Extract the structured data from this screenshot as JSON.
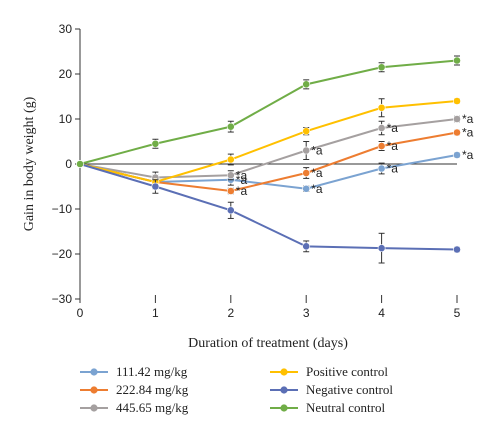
{
  "chart_data": {
    "type": "line",
    "xlabel": "Duration of treatment (days)",
    "ylabel": "Gain in body weight (g)",
    "xlim": [
      0,
      5
    ],
    "ylim": [
      -30,
      30
    ],
    "x_ticks": [
      0,
      1,
      2,
      3,
      4,
      5
    ],
    "y_ticks": [
      -30,
      -20,
      -10,
      0,
      10,
      20,
      30
    ],
    "x_tick_labels": [
      "0",
      "1",
      "2",
      "3",
      "4",
      "5"
    ],
    "y_tick_labels": [
      "−30",
      "−20",
      "−10",
      "0",
      "10",
      "20",
      "30"
    ],
    "grid": false,
    "legend_position": "bottom",
    "x": [
      0,
      1,
      2,
      3,
      4,
      5
    ],
    "series": [
      {
        "name": "111.42 mg/kg",
        "color": "#7ba3d1",
        "values": [
          0,
          -4,
          -3.5,
          -5.5,
          -1,
          2
        ],
        "errors": [
          0,
          1.5,
          1.2,
          0.6,
          1.2,
          0.5
        ],
        "annotations": [
          "",
          "",
          "*a",
          "*a",
          "*a",
          "*a"
        ]
      },
      {
        "name": "222.84 mg/kg",
        "color": "#ed7d31",
        "values": [
          0,
          -4,
          -6,
          -2,
          4,
          7
        ],
        "errors": [
          0,
          1.0,
          0.6,
          1.2,
          1.0,
          0.5
        ],
        "annotations": [
          "",
          "",
          "*a",
          "*a",
          "*a",
          "*a"
        ]
      },
      {
        "name": "445.65 mg/kg",
        "color": "#a5a0a0",
        "values": [
          0,
          -3,
          -2.5,
          3,
          8,
          10
        ],
        "errors": [
          0,
          1.2,
          1.0,
          2.0,
          1.5,
          0.6
        ],
        "annotations": [
          "",
          "",
          "*a",
          "*a",
          "*a",
          "*a"
        ]
      },
      {
        "name": "Positive control",
        "color": "#ffc000",
        "values": [
          0,
          -4,
          1,
          7.3,
          12.5,
          14
        ],
        "errors": [
          0,
          0.6,
          1.2,
          0.8,
          2.0,
          0.5
        ],
        "annotations": [
          "",
          "",
          "",
          "",
          "",
          ""
        ]
      },
      {
        "name": "Negative control",
        "color": "#5b6fb5",
        "values": [
          0,
          -5,
          -10.3,
          -18.3,
          -18.7,
          -19
        ],
        "errors": [
          0,
          1.5,
          1.8,
          1.2,
          3.3,
          0.5
        ],
        "annotations": [
          "",
          "",
          "",
          "",
          "",
          ""
        ]
      },
      {
        "name": "Neutral control",
        "color": "#70ad47",
        "values": [
          0,
          4.5,
          8.3,
          17.7,
          21.5,
          23
        ],
        "errors": [
          0,
          1.0,
          1.2,
          1.0,
          1.0,
          1.0
        ],
        "annotations": [
          "",
          "",
          "",
          "",
          "",
          ""
        ]
      }
    ]
  }
}
